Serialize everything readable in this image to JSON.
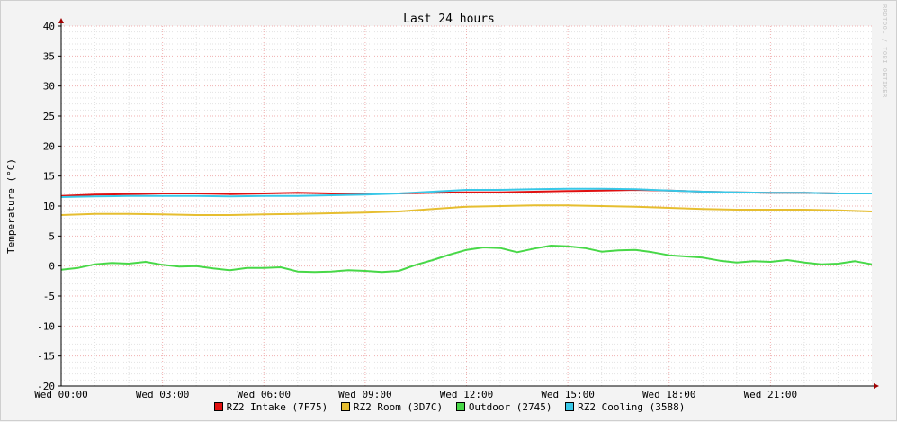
{
  "watermark": "RRDTOOL / TOBI OETIKER",
  "chart_data": {
    "type": "line",
    "title": "Last 24 hours",
    "ylabel": "Temperature (°C)",
    "xlabel": "",
    "ylim": [
      -20,
      40
    ],
    "y_ticks": [
      40,
      35,
      30,
      25,
      20,
      15,
      10,
      5,
      0,
      -5,
      -10,
      -15,
      -20
    ],
    "x_range_hours": [
      0,
      24
    ],
    "x_ticks": [
      {
        "h": 0,
        "label": "Wed 00:00"
      },
      {
        "h": 3,
        "label": "Wed 03:00"
      },
      {
        "h": 6,
        "label": "Wed 06:00"
      },
      {
        "h": 9,
        "label": "Wed 09:00"
      },
      {
        "h": 12,
        "label": "Wed 12:00"
      },
      {
        "h": 15,
        "label": "Wed 15:00"
      },
      {
        "h": 18,
        "label": "Wed 18:00"
      },
      {
        "h": 21,
        "label": "Wed 21:00"
      }
    ],
    "grid": true,
    "legend_position": "bottom-center",
    "series": [
      {
        "name": "RZ2 Intake (7F75)",
        "color": "#e01010",
        "x": [
          0,
          1,
          2,
          3,
          4,
          5,
          6,
          7,
          8,
          9,
          10,
          11,
          12,
          13,
          14,
          15,
          16,
          17,
          18,
          19,
          20,
          21,
          22,
          23,
          24
        ],
        "values": [
          11.7,
          11.9,
          12.0,
          12.1,
          12.1,
          12.0,
          12.1,
          12.2,
          12.1,
          12.1,
          12.1,
          12.2,
          12.3,
          12.3,
          12.4,
          12.5,
          12.6,
          12.7,
          12.6,
          12.4,
          12.3,
          12.2,
          12.2,
          12.1,
          12.1
        ]
      },
      {
        "name": "RZ2 Room (3D7C)",
        "color": "#e6be30",
        "x": [
          0,
          1,
          2,
          3,
          4,
          5,
          6,
          7,
          8,
          9,
          10,
          11,
          12,
          13,
          14,
          15,
          16,
          17,
          18,
          19,
          20,
          21,
          22,
          23,
          24
        ],
        "values": [
          8.5,
          8.7,
          8.7,
          8.6,
          8.5,
          8.5,
          8.6,
          8.7,
          8.8,
          8.9,
          9.1,
          9.5,
          9.9,
          10.0,
          10.1,
          10.1,
          10.0,
          9.9,
          9.7,
          9.5,
          9.4,
          9.4,
          9.4,
          9.3,
          9.1
        ]
      },
      {
        "name": "Outdoor (2745)",
        "color": "#48d848",
        "x": [
          0,
          0.5,
          1,
          1.5,
          2,
          2.5,
          3,
          3.5,
          4,
          4.5,
          5,
          5.5,
          6,
          6.5,
          7,
          7.5,
          8,
          8.5,
          9,
          9.5,
          10,
          10.5,
          11,
          11.5,
          12,
          12.5,
          13,
          13.5,
          14,
          14.5,
          15,
          15.5,
          16,
          16.5,
          17,
          17.5,
          18,
          18.5,
          19,
          19.5,
          20,
          20.5,
          21,
          21.5,
          22,
          22.5,
          23,
          23.5,
          24
        ],
        "values": [
          -0.6,
          -0.3,
          0.3,
          0.5,
          0.4,
          0.7,
          0.2,
          -0.1,
          0.0,
          -0.4,
          -0.7,
          -0.3,
          -0.3,
          -0.2,
          -0.9,
          -1.0,
          -0.9,
          -0.7,
          -0.8,
          -1.0,
          -0.8,
          0.2,
          1.0,
          1.9,
          2.7,
          3.1,
          3.0,
          2.3,
          2.9,
          3.4,
          3.3,
          3.0,
          2.4,
          2.6,
          2.7,
          2.3,
          1.8,
          1.6,
          1.4,
          0.9,
          0.6,
          0.8,
          0.7,
          1.0,
          0.6,
          0.3,
          0.4,
          0.8,
          0.3
        ]
      },
      {
        "name": "RZ2 Cooling (3588)",
        "color": "#38c8e8",
        "x": [
          0,
          1,
          2,
          3,
          4,
          5,
          6,
          7,
          8,
          9,
          10,
          11,
          12,
          13,
          14,
          15,
          16,
          17,
          18,
          19,
          20,
          21,
          22,
          23,
          24
        ],
        "values": [
          11.5,
          11.6,
          11.7,
          11.7,
          11.7,
          11.6,
          11.7,
          11.7,
          11.8,
          11.9,
          12.1,
          12.4,
          12.7,
          12.7,
          12.8,
          12.9,
          12.9,
          12.8,
          12.6,
          12.4,
          12.3,
          12.2,
          12.2,
          12.1,
          12.1
        ]
      }
    ]
  }
}
